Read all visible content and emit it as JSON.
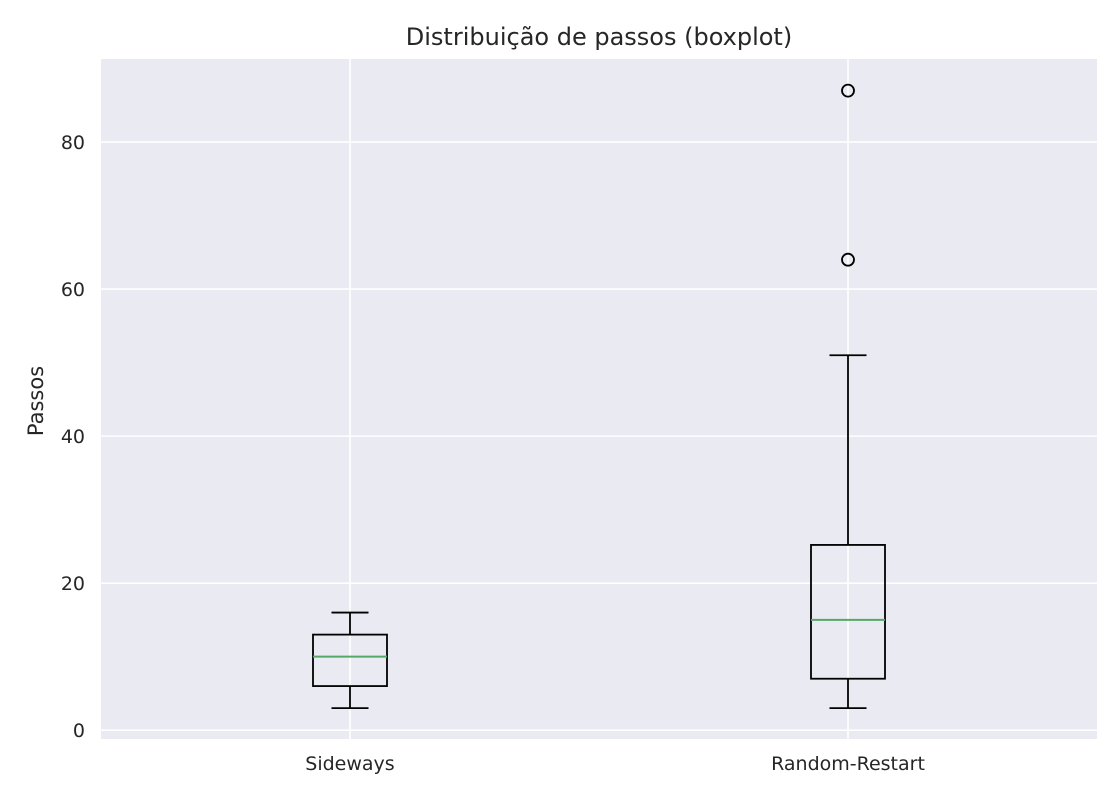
{
  "chart_data": {
    "type": "boxplot",
    "title": "Distribuição de passos (boxplot)",
    "xlabel": "",
    "ylabel": "Passos",
    "categories": [
      "Sideways",
      "Random-Restart"
    ],
    "boxes": [
      {
        "category": "Sideways",
        "whisker_low": 3,
        "q1": 6,
        "median": 10,
        "q3": 13,
        "whisker_high": 16,
        "outliers": []
      },
      {
        "category": "Random-Restart",
        "whisker_low": 3,
        "q1": 7,
        "median": 15,
        "q3": 25.2,
        "whisker_high": 51,
        "outliers": [
          64,
          87
        ]
      }
    ],
    "ylim": [
      -1.2,
      91.3
    ],
    "yticks": [
      0,
      20,
      40,
      60,
      80
    ],
    "grid": true,
    "colors": {
      "background": "#EAEAF2",
      "grid": "#FFFFFF",
      "box": "#000000",
      "median": "#55A868"
    }
  }
}
